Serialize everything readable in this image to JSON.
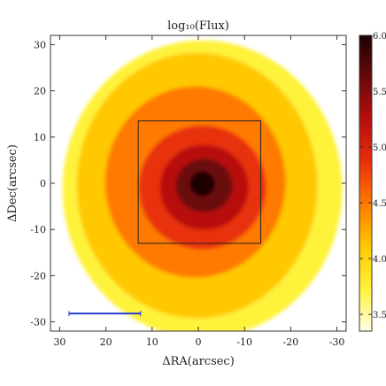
{
  "chart_data": {
    "type": "heatmap",
    "title": "log₁₀(Flux)",
    "xlabel": "ΔRA(arcsec)",
    "ylabel": "ΔDec(arcsec)",
    "xlim": [
      32,
      -32
    ],
    "ylim": [
      -32,
      32
    ],
    "x_ticks": [
      30,
      20,
      10,
      0,
      -10,
      -20,
      -30
    ],
    "x_tick_labels": [
      "30",
      "20",
      "10",
      "0",
      "-10",
      "-20",
      "-30"
    ],
    "y_ticks": [
      30,
      20,
      10,
      0,
      -10,
      -20,
      -30
    ],
    "y_tick_labels": [
      "30",
      "20",
      "10",
      "0",
      "-10",
      "-20",
      "-30"
    ],
    "colorbar": {
      "range": [
        3.35,
        6.0
      ],
      "ticks": [
        3.5,
        4.0,
        4.5,
        5.0,
        5.5,
        6.0
      ],
      "tick_labels": [
        "3.5",
        "4.0",
        "4.5",
        "5.0",
        "5.5",
        "6.0"
      ],
      "colormap": "hot_r",
      "colors": [
        "#ffffe8",
        "#fff23a",
        "#ffc800",
        "#ff7a00",
        "#e8300a",
        "#b80e0e",
        "#6a0808",
        "#1c0202"
      ]
    },
    "box_region": {
      "ra_range": [
        13,
        -13.5
      ],
      "dec_range": [
        -13,
        13.5
      ],
      "color": "#222222"
    },
    "scale_bar": {
      "ra_range": [
        28,
        12.5
      ],
      "dec": -28.2,
      "color": "#2a3bd4"
    },
    "grid": false
  }
}
